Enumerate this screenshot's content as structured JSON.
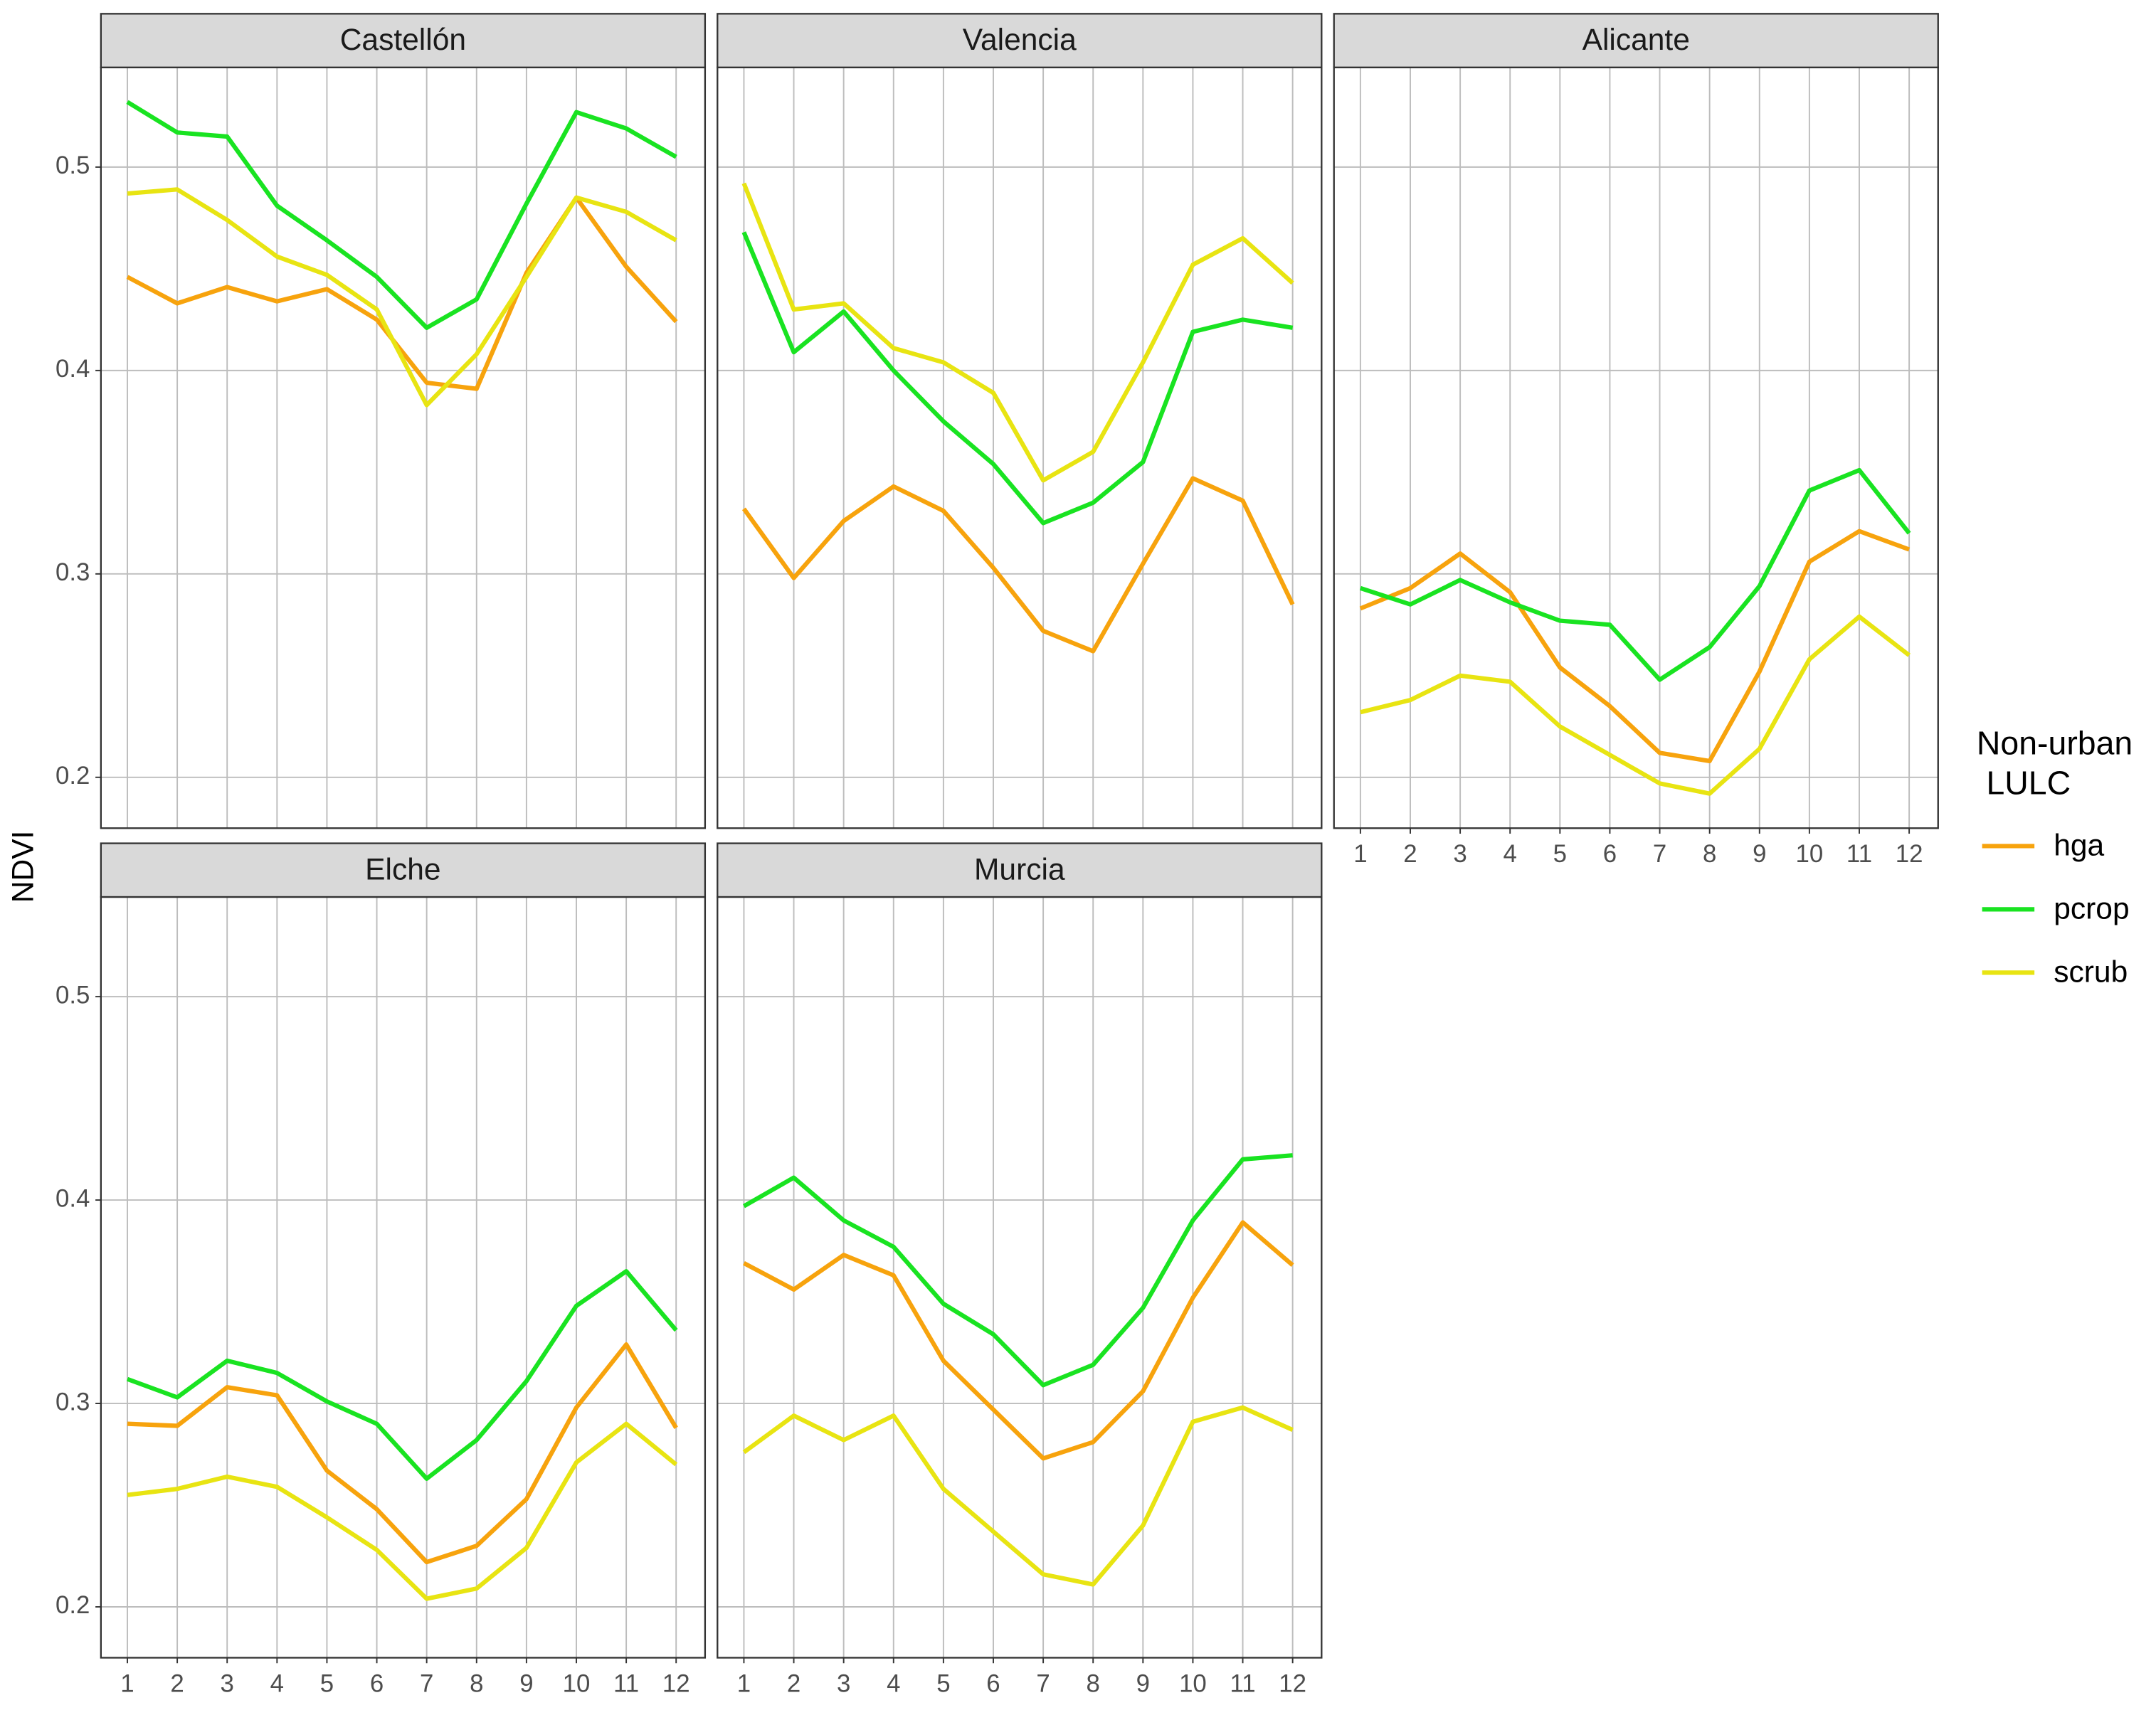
{
  "y_label": "NDVI",
  "legend_title": [
    "Non-urban",
    "LULC"
  ],
  "chart_data": [
    {
      "type": "line",
      "title": "Castellón",
      "x": [
        1,
        2,
        3,
        4,
        5,
        6,
        7,
        8,
        9,
        10,
        11,
        12
      ],
      "xlim": [
        0.47,
        12.58
      ],
      "xticks": [
        1,
        2,
        3,
        4,
        5,
        6,
        7,
        8,
        9,
        10,
        11,
        12
      ],
      "ylim": [
        0.175,
        0.549
      ],
      "yticks": [
        0.2,
        0.3,
        0.4,
        0.5
      ],
      "grid": true,
      "series": [
        {
          "name": "hga",
          "color": "#f7a30d",
          "values": [
            0.446,
            0.433,
            0.441,
            0.434,
            0.44,
            0.425,
            0.394,
            0.391,
            0.448,
            0.485,
            0.451,
            0.424
          ]
        },
        {
          "name": "pcrop",
          "color": "#19e321",
          "values": [
            0.532,
            0.517,
            0.515,
            0.481,
            0.464,
            0.446,
            0.421,
            0.435,
            0.482,
            0.527,
            0.519,
            0.505
          ]
        },
        {
          "name": "scrub",
          "color": "#e8e412",
          "values": [
            0.487,
            0.489,
            0.474,
            0.456,
            0.447,
            0.43,
            0.383,
            0.408,
            0.446,
            0.485,
            0.478,
            0.464
          ]
        }
      ]
    },
    {
      "type": "line",
      "title": "Valencia",
      "x": [
        1,
        2,
        3,
        4,
        5,
        6,
        7,
        8,
        9,
        10,
        11,
        12
      ],
      "xlim": [
        0.47,
        12.58
      ],
      "xticks": [
        1,
        2,
        3,
        4,
        5,
        6,
        7,
        8,
        9,
        10,
        11,
        12
      ],
      "ylim": [
        0.175,
        0.549
      ],
      "yticks": [
        0.2,
        0.3,
        0.4,
        0.5
      ],
      "grid": true,
      "series": [
        {
          "name": "hga",
          "color": "#f7a30d",
          "values": [
            0.332,
            0.298,
            0.326,
            0.343,
            0.331,
            0.303,
            0.272,
            0.262,
            0.305,
            0.347,
            0.336,
            0.285
          ]
        },
        {
          "name": "pcrop",
          "color": "#19e321",
          "values": [
            0.468,
            0.409,
            0.429,
            0.4,
            0.375,
            0.354,
            0.325,
            0.335,
            0.355,
            0.419,
            0.425,
            0.421
          ]
        },
        {
          "name": "scrub",
          "color": "#e8e412",
          "values": [
            0.492,
            0.43,
            0.433,
            0.411,
            0.404,
            0.389,
            0.346,
            0.36,
            0.404,
            0.452,
            0.465,
            0.443
          ]
        }
      ]
    },
    {
      "type": "line",
      "title": "Alicante",
      "x": [
        1,
        2,
        3,
        4,
        5,
        6,
        7,
        8,
        9,
        10,
        11,
        12
      ],
      "xlim": [
        0.47,
        12.58
      ],
      "xticks": [
        1,
        2,
        3,
        4,
        5,
        6,
        7,
        8,
        9,
        10,
        11,
        12
      ],
      "ylim": [
        0.175,
        0.549
      ],
      "yticks": [
        0.2,
        0.3,
        0.4,
        0.5
      ],
      "grid": true,
      "series": [
        {
          "name": "hga",
          "color": "#f7a30d",
          "values": [
            0.283,
            0.293,
            0.31,
            0.291,
            0.254,
            0.235,
            0.212,
            0.208,
            0.252,
            0.306,
            0.321,
            0.312
          ]
        },
        {
          "name": "pcrop",
          "color": "#19e321",
          "values": [
            0.293,
            0.285,
            0.297,
            0.286,
            0.277,
            0.275,
            0.248,
            0.264,
            0.294,
            0.341,
            0.351,
            0.32
          ]
        },
        {
          "name": "scrub",
          "color": "#e8e412",
          "values": [
            0.232,
            0.238,
            0.25,
            0.247,
            0.225,
            0.211,
            0.197,
            0.192,
            0.214,
            0.258,
            0.279,
            0.26
          ]
        }
      ]
    },
    {
      "type": "line",
      "title": "Elche",
      "x": [
        1,
        2,
        3,
        4,
        5,
        6,
        7,
        8,
        9,
        10,
        11,
        12
      ],
      "xlim": [
        0.47,
        12.58
      ],
      "xticks": [
        1,
        2,
        3,
        4,
        5,
        6,
        7,
        8,
        9,
        10,
        11,
        12
      ],
      "ylim": [
        0.175,
        0.549
      ],
      "yticks": [
        0.2,
        0.3,
        0.4,
        0.5
      ],
      "grid": true,
      "series": [
        {
          "name": "hga",
          "color": "#f7a30d",
          "values": [
            0.29,
            0.289,
            0.308,
            0.304,
            0.267,
            0.248,
            0.222,
            0.23,
            0.253,
            0.298,
            0.329,
            0.288
          ]
        },
        {
          "name": "pcrop",
          "color": "#19e321",
          "values": [
            0.312,
            0.303,
            0.321,
            0.315,
            0.301,
            0.29,
            0.263,
            0.282,
            0.311,
            0.348,
            0.365,
            0.336
          ]
        },
        {
          "name": "scrub",
          "color": "#e8e412",
          "values": [
            0.255,
            0.258,
            0.264,
            0.259,
            0.244,
            0.228,
            0.204,
            0.209,
            0.229,
            0.271,
            0.29,
            0.27
          ]
        }
      ]
    },
    {
      "type": "line",
      "title": "Murcia",
      "x": [
        1,
        2,
        3,
        4,
        5,
        6,
        7,
        8,
        9,
        10,
        11,
        12
      ],
      "xlim": [
        0.47,
        12.58
      ],
      "xticks": [
        1,
        2,
        3,
        4,
        5,
        6,
        7,
        8,
        9,
        10,
        11,
        12
      ],
      "ylim": [
        0.175,
        0.549
      ],
      "yticks": [
        0.2,
        0.3,
        0.4,
        0.5
      ],
      "grid": true,
      "series": [
        {
          "name": "hga",
          "color": "#f7a30d",
          "values": [
            0.369,
            0.356,
            0.373,
            0.363,
            0.321,
            0.297,
            0.273,
            0.281,
            0.306,
            0.352,
            0.389,
            0.368
          ]
        },
        {
          "name": "pcrop",
          "color": "#19e321",
          "values": [
            0.397,
            0.411,
            0.39,
            0.377,
            0.349,
            0.334,
            0.309,
            0.319,
            0.347,
            0.39,
            0.42,
            0.422
          ]
        },
        {
          "name": "scrub",
          "color": "#e8e412",
          "values": [
            0.276,
            0.294,
            0.282,
            0.294,
            0.258,
            0.237,
            0.216,
            0.211,
            0.24,
            0.291,
            0.298,
            0.287
          ]
        }
      ]
    }
  ]
}
